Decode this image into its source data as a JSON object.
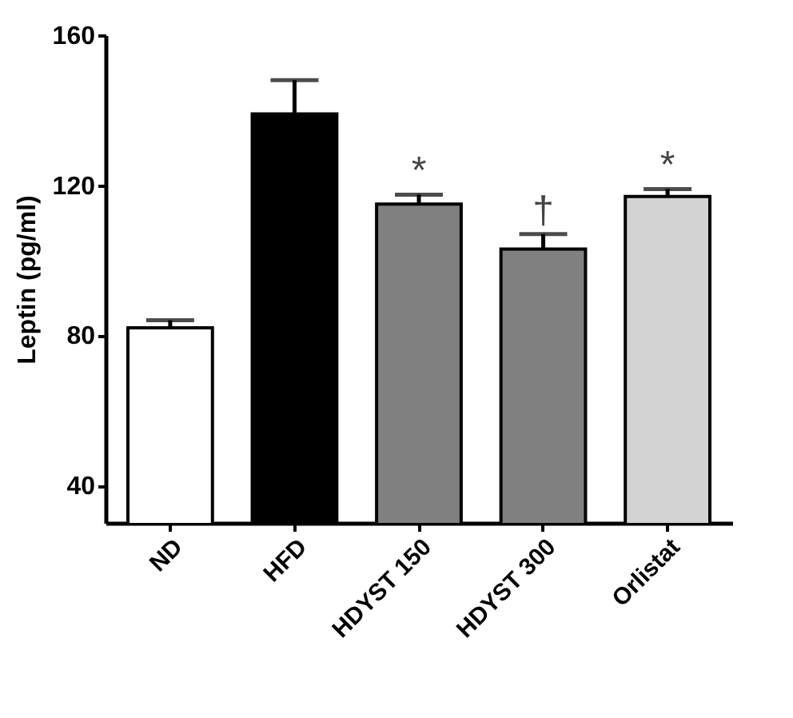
{
  "chart_data": {
    "type": "bar",
    "ylabel": "Leptin (pg/ml)",
    "categories": [
      "ND",
      "HFD",
      "HDYST 150",
      "HDYST 300",
      "Orlistat"
    ],
    "values": [
      82,
      139,
      115,
      103,
      117
    ],
    "colors": [
      "#ffffff",
      "#000000",
      "#808080",
      "#808080",
      "#d3d3d3"
    ],
    "errors": [
      [
        82,
        84
      ],
      [
        139,
        148
      ],
      [
        115,
        117.5
      ],
      [
        103,
        107
      ],
      [
        117,
        119
      ]
    ],
    "ylim": [
      30,
      160
    ],
    "yticks": [
      40,
      80,
      120,
      160
    ],
    "grid": false,
    "annotations": [
      {
        "text": "*",
        "x": "HDYST 150",
        "y": 117.5
      },
      {
        "text": "†",
        "x": "HDYST 300",
        "y": 107
      },
      {
        "text": "*",
        "x": "Orlistat",
        "y": 119
      }
    ]
  }
}
